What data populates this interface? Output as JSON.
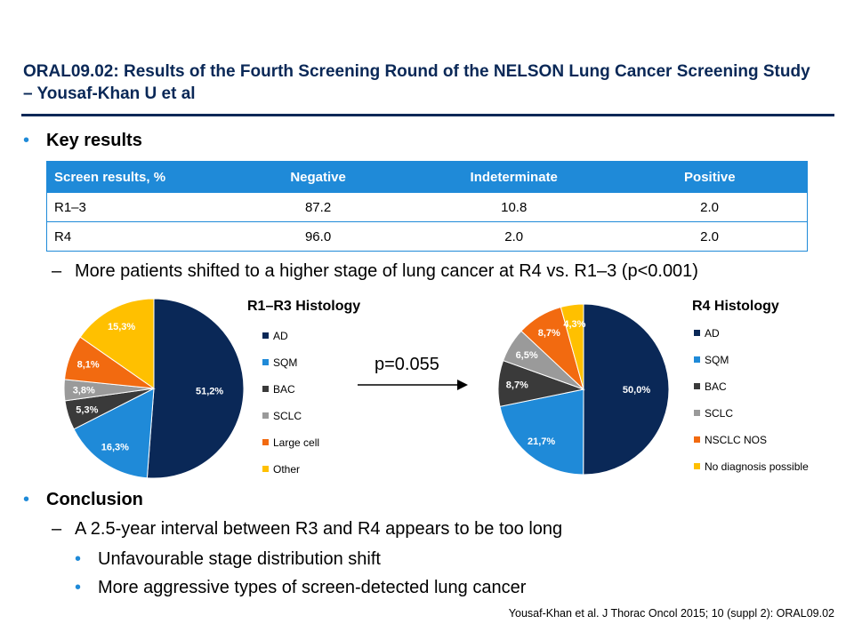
{
  "title": "ORAL09.02: Results of the Fourth Screening Round of the NELSON Lung Cancer Screening Study – Yousaf-Khan U et al",
  "key_results_bullet": "Key results",
  "table": {
    "headers": [
      "Screen results, %",
      "Negative",
      "Indeterminate",
      "Positive"
    ],
    "rows": [
      [
        "R1–3",
        "87.2",
        "10.8",
        "2.0"
      ],
      [
        "R4",
        "96.0",
        "2.0",
        "2.0"
      ]
    ]
  },
  "shift_text": "More patients shifted to a higher stage of lung cancer at R4 vs. R1–3 (p<0.001)",
  "p_value": "p=0.055",
  "conclusion_bullet": "Conclusion",
  "conclusion_dash": "A 2.5-year interval between R3 and R4 appears to be too long",
  "sub_bullets": [
    "Unfavourable stage distribution shift",
    "More aggressive types of screen-detected lung cancer"
  ],
  "citation": "Yousaf-Khan et al. J Thorac Oncol 2015; 10 (suppl 2): ORAL09.02",
  "colors": {
    "navy": "#0a2857",
    "blue": "#1f8ad8",
    "dark": "#3a3a3a",
    "grey": "#9a9a9a",
    "orange": "#f26a10",
    "yellow": "#ffc000"
  },
  "chart_data": [
    {
      "type": "pie",
      "title": "R1–R3 Histology",
      "categories": [
        "AD",
        "SQM",
        "BAC",
        "SCLC",
        "Large cell",
        "Other"
      ],
      "values": [
        51.2,
        16.3,
        5.3,
        3.8,
        8.1,
        15.3
      ],
      "value_labels": [
        "51,2%",
        "16,3%",
        "5,3%",
        "3,8%",
        "8,1%",
        "15,3%"
      ],
      "colors": [
        "#0a2857",
        "#1f8ad8",
        "#3a3a3a",
        "#9a9a9a",
        "#f26a10",
        "#ffc000"
      ],
      "legend_position": "right"
    },
    {
      "type": "pie",
      "title": "R4 Histology",
      "categories": [
        "AD",
        "SQM",
        "BAC",
        "SCLC",
        "NSCLC NOS",
        "No diagnosis possible"
      ],
      "values": [
        50.0,
        21.7,
        8.7,
        6.5,
        8.7,
        4.3
      ],
      "value_labels": [
        "50,0%",
        "21,7%",
        "8,7%",
        "6,5%",
        "8,7%",
        "4,3%"
      ],
      "colors": [
        "#0a2857",
        "#1f8ad8",
        "#3a3a3a",
        "#9a9a9a",
        "#f26a10",
        "#ffc000"
      ],
      "legend_position": "right"
    }
  ]
}
